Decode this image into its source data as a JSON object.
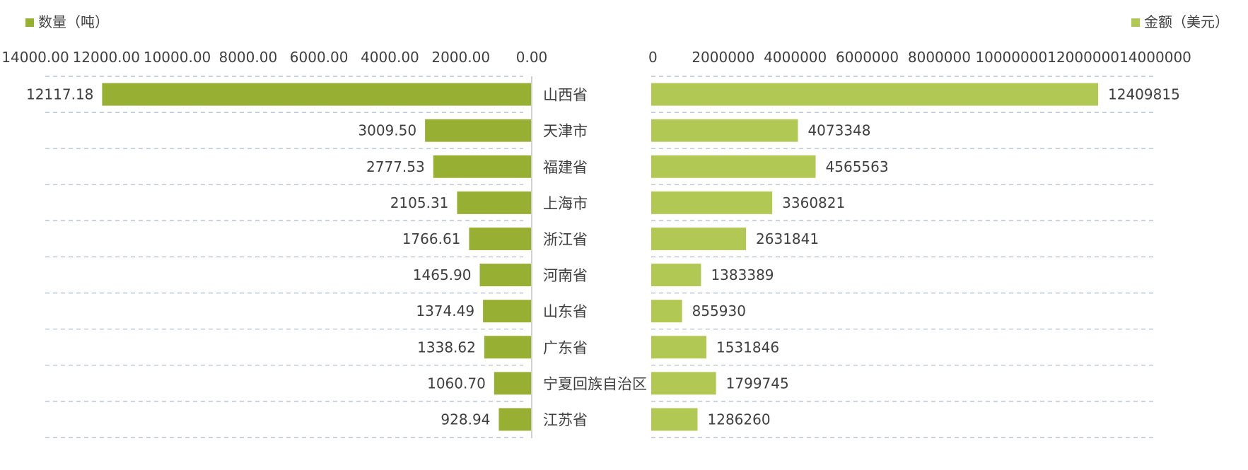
{
  "chart_data": [
    {
      "type": "bar",
      "orientation": "horizontal",
      "direction": "reversed",
      "categories": [
        "山西省",
        "天津市",
        "福建省",
        "上海市",
        "浙江省",
        "河南省",
        "山东省",
        "广东省",
        "宁夏回族自治区",
        "江苏省"
      ],
      "series": [
        {
          "name": "数量（吨）",
          "values": [
            12117.18,
            3009.5,
            2777.53,
            2105.31,
            1766.61,
            1465.9,
            1374.49,
            1338.62,
            1060.7,
            928.94
          ],
          "value_labels": [
            "12117.18",
            "3009.50",
            "2777.53",
            "2105.31",
            "1766.61",
            "1465.90",
            "1374.49",
            "1338.62",
            "1060.70",
            "928.94"
          ]
        }
      ],
      "x_ticks": [
        "14000.00",
        "12000.00",
        "10000.00",
        "8000.00",
        "6000.00",
        "4000.00",
        "2000.00",
        "0.00"
      ],
      "xlim": [
        0,
        14000
      ],
      "legend": "top-left",
      "grid": true,
      "color": "#97b034"
    },
    {
      "type": "bar",
      "orientation": "horizontal",
      "categories": [
        "山西省",
        "天津市",
        "福建省",
        "上海市",
        "浙江省",
        "河南省",
        "山东省",
        "广东省",
        "宁夏回族自治区",
        "江苏省"
      ],
      "series": [
        {
          "name": "金额（美元）",
          "values": [
            12409815,
            4073348,
            4565563,
            3360821,
            2631841,
            1383389,
            855930,
            1531846,
            1799745,
            1286260
          ],
          "value_labels": [
            "12409815",
            "4073348",
            "4565563",
            "3360821",
            "2631841",
            "1383389",
            "855930",
            "1531846",
            "1799745",
            "1286260"
          ]
        }
      ],
      "x_ticks": [
        "0",
        "2000000",
        "4000000",
        "6000000",
        "8000000",
        "10000000",
        "12000000",
        "14000000"
      ],
      "xlim": [
        0,
        14000000
      ],
      "legend": "top-right",
      "grid": true,
      "color": "#b1c954"
    }
  ]
}
